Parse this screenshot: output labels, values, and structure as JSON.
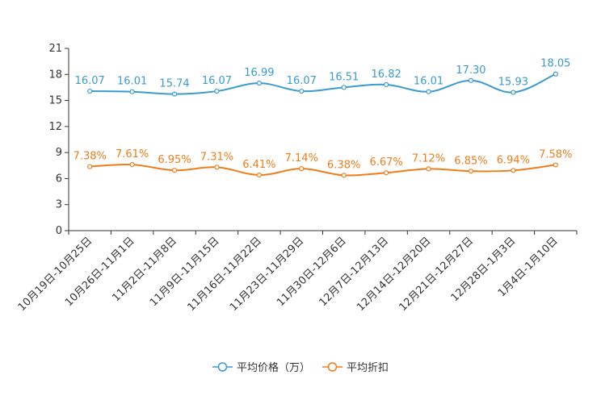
{
  "chart_data": {
    "type": "line",
    "title": "",
    "xlabel": "",
    "ylabel": "",
    "ylim": [
      0,
      21
    ],
    "yticks": [
      0,
      3,
      6,
      9,
      12,
      15,
      18,
      21
    ],
    "grid": false,
    "legend_position": "bottom",
    "categories": [
      "10月19日-10月25日",
      "10月26日-11月1日",
      "11月2日-11月8日",
      "11月9日-11月15日",
      "11月16日-11月22日",
      "11月23日-11月29日",
      "11月30日-12月6日",
      "12月7日-12月13日",
      "12月14日-12月20日",
      "12月21日-12月27日",
      "12月28日-1月3日",
      "1月4日-1月10日"
    ],
    "series": [
      {
        "name": "平均价格（万）",
        "color": "#3a9bd0",
        "values": [
          16.07,
          16.01,
          15.74,
          16.07,
          16.99,
          16.07,
          16.51,
          16.82,
          16.01,
          17.3,
          15.93,
          18.05
        ],
        "labels": [
          "16.07",
          "16.01",
          "15.74",
          "16.07",
          "16.99",
          "16.07",
          "16.51",
          "16.82",
          "16.01",
          "17.30",
          "15.93",
          "18.05"
        ]
      },
      {
        "name": "平均折扣",
        "color": "#f07d1a",
        "values": [
          7.38,
          7.61,
          6.95,
          7.31,
          6.41,
          7.14,
          6.38,
          6.67,
          7.12,
          6.85,
          6.94,
          7.58
        ],
        "labels": [
          "7.38%",
          "7.61%",
          "6.95%",
          "7.31%",
          "6.41%",
          "7.14%",
          "6.38%",
          "6.67%",
          "7.12%",
          "6.85%",
          "6.94%",
          "7.58%"
        ]
      }
    ]
  }
}
